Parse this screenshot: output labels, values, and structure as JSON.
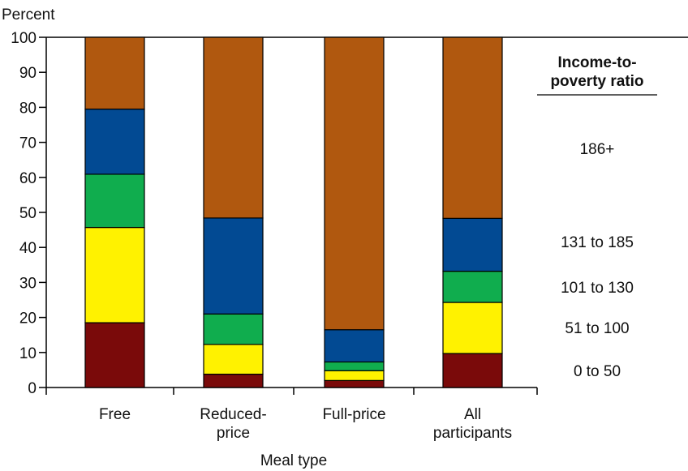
{
  "chart_data": {
    "type": "bar",
    "stacked": true,
    "ylabel": "Percent",
    "xlabel": "Meal type",
    "ylim": [
      0,
      100
    ],
    "yticks": [
      0,
      10,
      20,
      30,
      40,
      50,
      60,
      70,
      80,
      90,
      100
    ],
    "categories": [
      [
        "Free"
      ],
      [
        "Reduced-",
        "price"
      ],
      [
        "Full-price"
      ],
      [
        "All",
        "participants"
      ]
    ],
    "legend_title": [
      "Income-to-",
      "poverty ratio"
    ],
    "legend_placement": "right",
    "series": [
      {
        "name": "0 to 50",
        "color": "#7a0a0a",
        "values": [
          18.5,
          3.8,
          2.0,
          9.7
        ]
      },
      {
        "name": "51 to 100",
        "color": "#fff200",
        "values": [
          27.2,
          8.5,
          2.8,
          14.6
        ]
      },
      {
        "name": "101 to 130",
        "color": "#10ad4e",
        "values": [
          15.2,
          8.7,
          2.5,
          8.9
        ]
      },
      {
        "name": "131 to 185",
        "color": "#024a93",
        "values": [
          18.6,
          27.4,
          9.2,
          15.1
        ]
      },
      {
        "name": "186+",
        "color": "#b0580f",
        "values": [
          20.5,
          51.6,
          83.5,
          51.7
        ]
      }
    ],
    "grid": false
  }
}
